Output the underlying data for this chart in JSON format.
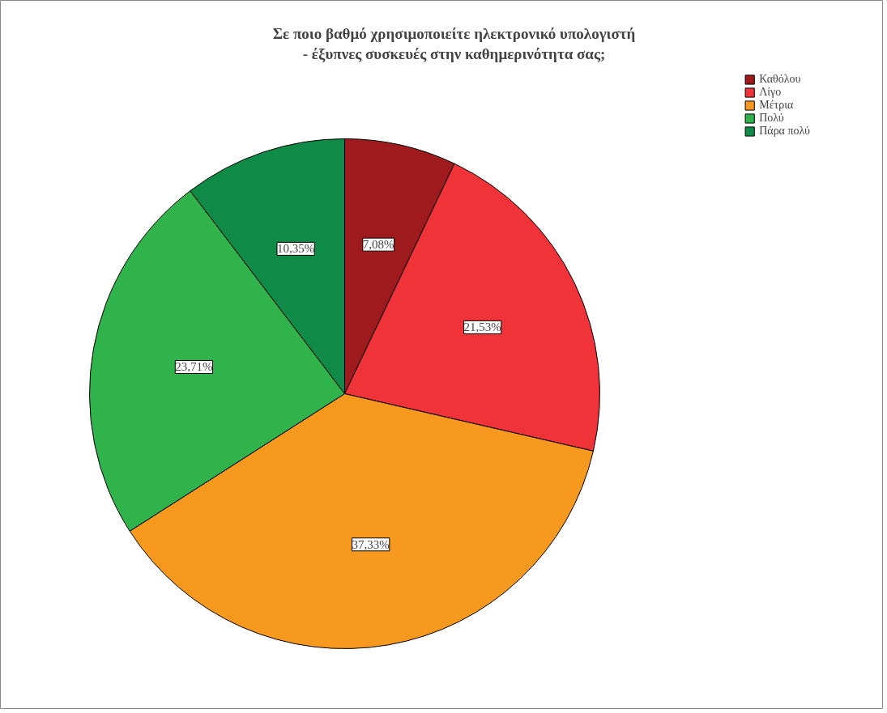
{
  "chart_data": {
    "type": "pie",
    "title": "Σε ποιο βαθμό χρησιμοποιείτε ηλεκτρονικό υπολογιστή - έξυπνες συσκευές στην καθημερινότητα σας;",
    "categories": [
      "Καθόλου",
      "Λίγο",
      "Μέτρια",
      "Πολύ",
      "Πάρα πολύ"
    ],
    "values": [
      7.08,
      21.53,
      37.33,
      23.71,
      10.35
    ],
    "colors": [
      "#9e1a1d",
      "#ef3338",
      "#f7981f",
      "#2fb34a",
      "#0f8a47"
    ],
    "value_labels": [
      "7,08%",
      "21,53%",
      "37,33%",
      "23,71%",
      "10,35%"
    ],
    "legend": "top right"
  }
}
